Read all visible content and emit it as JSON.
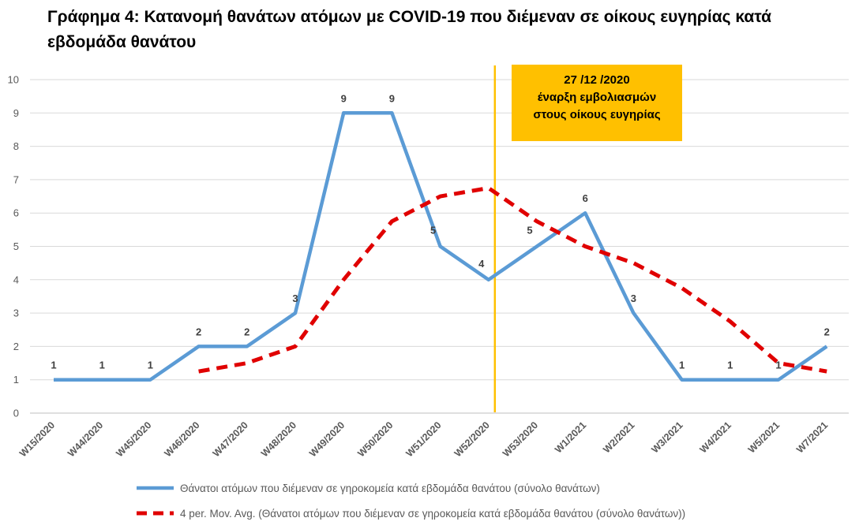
{
  "title": "Γράφημα 4: Κατανομή θανάτων ατόμων με COVID-19 που διέμεναν σε οίκους ευγηρίας κατά εβδομάδα θανάτου",
  "chart_data": {
    "type": "line",
    "title": "Γράφημα 4: Κατανομή θανάτων ατόμων με COVID-19 που διέμεναν σε οίκους ευγηρίας κατά εβδομάδα θανάτου",
    "categories": [
      "W15/2020",
      "W44/2020",
      "W45/2020",
      "W46/2020",
      "W47/2020",
      "W48/2020",
      "W49/2020",
      "W50/2020",
      "W51/2020",
      "W52/2020",
      "W53/2020",
      "W1/2021",
      "W2/2021",
      "W3/2021",
      "W4/2021",
      "W5/2021",
      "W7/2021"
    ],
    "ylim": [
      0,
      10
    ],
    "yticks": [
      "0",
      "1",
      "2",
      "3",
      "4",
      "5",
      "6",
      "7",
      "8",
      "9",
      "10"
    ],
    "grid": true,
    "legend_position": "bottom",
    "series": [
      {
        "name": "Θάνατοι ατόμων που διέμεναν σε γηροκομεία κατά εβδομάδα θανάτου (σύνολο θανάτων)",
        "values": [
          1,
          1,
          1,
          2,
          2,
          3,
          9,
          9,
          5,
          4,
          5,
          6,
          3,
          1,
          1,
          1,
          2
        ],
        "data_labels": [
          "1",
          "1",
          "1",
          "2",
          "2",
          "3",
          "9",
          "9",
          "5",
          "4",
          "5",
          "6",
          "3",
          "1",
          "1",
          "1",
          "2"
        ],
        "color": "#5b9bd5",
        "style": "solid"
      },
      {
        "name": "4 per. Mov. Avg. (Θάνατοι ατόμων που διέμεναν σε γηροκομεία κατά εβδομάδα θανάτου (σύνολο θανάτων))",
        "values": [
          null,
          null,
          null,
          1.25,
          1.5,
          2.0,
          4.0,
          5.75,
          6.5,
          6.75,
          5.75,
          5.0,
          4.5,
          3.75,
          2.75,
          1.5,
          1.25
        ],
        "color": "#e00000",
        "style": "dashed"
      }
    ],
    "annotation": {
      "category": "W52/2020",
      "position_between": [
        "W52/2020",
        "W53/2020"
      ],
      "line_color": "#ffc000",
      "box_color": "#ffc000",
      "lines": [
        "27 /12 /2020",
        "έναρξη εμβολιασμών",
        "στους οίκους ευγηρίας"
      ]
    }
  }
}
